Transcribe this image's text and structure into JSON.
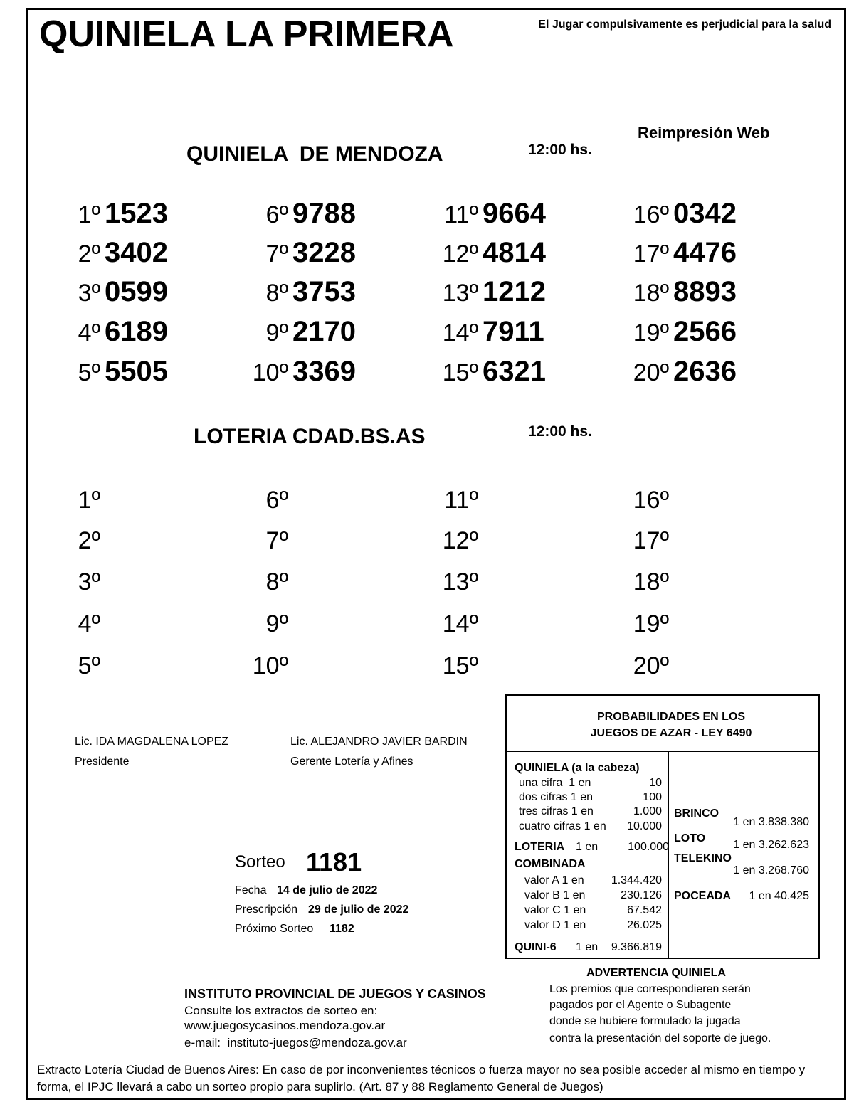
{
  "header": {
    "title": "QUINIELA LA PRIMERA",
    "warning": "El Jugar compulsivamente es perjudicial para la salud",
    "reprint": "Reimpresión Web"
  },
  "quiniela_mendoza": {
    "title": "QUINIELA  DE MENDOZA",
    "time": "12:00 hs.",
    "results": [
      {
        "position": "1º",
        "number": "1523"
      },
      {
        "position": "2º",
        "number": "3402"
      },
      {
        "position": "3º",
        "number": "0599"
      },
      {
        "position": "4º",
        "number": "6189"
      },
      {
        "position": "5º",
        "number": "5505"
      },
      {
        "position": "6º",
        "number": "9788"
      },
      {
        "position": "7º",
        "number": "3228"
      },
      {
        "position": "8º",
        "number": "3753"
      },
      {
        "position": "9º",
        "number": "2170"
      },
      {
        "position": "10º",
        "number": "3369"
      },
      {
        "position": "11º",
        "number": "9664"
      },
      {
        "position": "12º",
        "number": "4814"
      },
      {
        "position": "13º",
        "number": "1212"
      },
      {
        "position": "14º",
        "number": "7911"
      },
      {
        "position": "15º",
        "number": "6321"
      },
      {
        "position": "16º",
        "number": "0342"
      },
      {
        "position": "17º",
        "number": "4476"
      },
      {
        "position": "18º",
        "number": "8893"
      },
      {
        "position": "19º",
        "number": "2566"
      },
      {
        "position": "20º",
        "number": "2636"
      }
    ]
  },
  "loteria": {
    "title": "LOTERIA CDAD.BS.AS",
    "time": "12:00 hs.",
    "positions": [
      "1º",
      "2º",
      "3º",
      "4º",
      "5º",
      "6º",
      "7º",
      "8º",
      "9º",
      "10º",
      "11º",
      "12º",
      "13º",
      "14º",
      "15º",
      "16º",
      "17º",
      "18º",
      "19º",
      "20º"
    ]
  },
  "signatures": [
    {
      "name": "Lic. IDA MAGDALENA LOPEZ",
      "role": "Presidente"
    },
    {
      "name": "Lic. ALEJANDRO JAVIER BARDIN",
      "role": "Gerente Lotería y Afines"
    }
  ],
  "draw": {
    "label": "Sorteo",
    "number": "1181",
    "date_label": "Fecha",
    "date": "14 de julio de 2022",
    "prescription_label": "Prescripción",
    "prescription": "29 de julio de 2022",
    "next_label": "Próximo Sorteo",
    "next": "1182"
  },
  "probabilities": {
    "title_lines": [
      "PROBABILIDADES EN LOS",
      "JUEGOS DE AZAR - LEY 6490"
    ],
    "quiniela": {
      "label": "QUINIELA (a la cabeza)",
      "rows": [
        {
          "label": "una cifra  1 en",
          "value": "10"
        },
        {
          "label": "dos cifras 1 en",
          "value": "100"
        },
        {
          "label": "tres cifras 1 en",
          "value": "1.000"
        },
        {
          "label": "cuatro cifras 1 en",
          "value": "10.000"
        }
      ]
    },
    "loteria": {
      "label": "LOTERIA",
      "odds": "1 en",
      "value": "100.000"
    },
    "combinada": {
      "label": "COMBINADA",
      "rows": [
        {
          "label": "valor A 1 en",
          "value": "1.344.420"
        },
        {
          "label": "valor B 1 en",
          "value": "230.126"
        },
        {
          "label": "valor C 1 en",
          "value": "67.542"
        },
        {
          "label": "valor D 1 en",
          "value": "26.025"
        }
      ]
    },
    "quini6": {
      "label": "QUINI-6",
      "odds": "1 en",
      "value": "9.366.819"
    },
    "others": [
      {
        "name": "BRINCO",
        "odds": "1 en 3.838.380"
      },
      {
        "name": "LOTO",
        "odds": "1 en 3.262.623"
      },
      {
        "name": "TELEKINO",
        "odds": "1 en 3.268.760"
      },
      {
        "name": "POCEADA",
        "odds": "1 en 40.425"
      }
    ]
  },
  "institute": {
    "title": "INSTITUTO PROVINCIAL DE JUEGOS Y CASINOS",
    "lines": [
      "Consulte los extractos de sorteo en:",
      "www.juegosycasinos.mendoza.gov.ar",
      "e-mail:  instituto-juegos@mendoza.gov.ar"
    ]
  },
  "advertencia": {
    "title": "ADVERTENCIA QUINIELA",
    "lines": [
      "Los premios que correspondieren serán",
      "pagados por el Agente o Subagente",
      "donde se hubiere formulado la jugada",
      "contra la presentación del soporte de juego."
    ]
  },
  "footer": {
    "lines": [
      "Extracto Lotería Ciudad de Buenos Aires: En caso de por inconvenientes técnicos o fuerza mayor no sea posible acceder al mismo en tiempo y",
      "forma, el IPJC llevará a cabo un sorteo propio para suplirlo. (Art. 87 y 88 Reglamento General de Juegos)"
    ]
  }
}
